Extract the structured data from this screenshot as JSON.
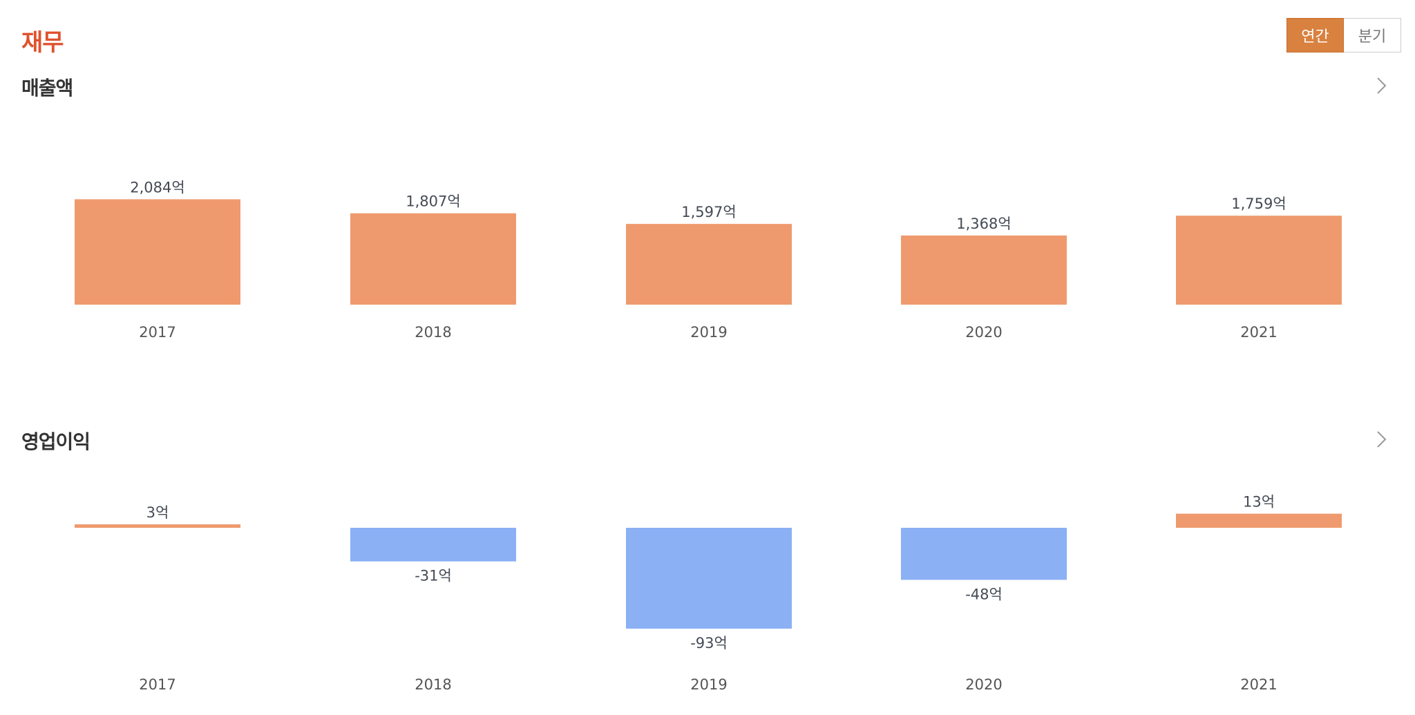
{
  "header": {
    "title": "재무",
    "toggle": {
      "options": [
        "연간",
        "분기"
      ],
      "selected": "연간"
    }
  },
  "colors": {
    "title_accent": "#e0522d",
    "toggle_active": "#d9813f",
    "positive_bar": "#ef9a6e",
    "negative_bar": "#8bb0f4"
  },
  "icons": {
    "section_link": "chevron-right-icon"
  },
  "chart_data": [
    {
      "type": "bar",
      "title": "매출액",
      "categories": [
        "2017",
        "2018",
        "2019",
        "2020",
        "2021"
      ],
      "values": [
        2084,
        1807,
        1597,
        1368,
        1759
      ],
      "value_labels": [
        "2,084억",
        "1,807억",
        "1,597억",
        "1,368억",
        "1,759억"
      ],
      "unit": "억",
      "ylim": [
        0,
        6000
      ],
      "grid": false,
      "legend": "none"
    },
    {
      "type": "bar",
      "title": "영업이익",
      "categories": [
        "2017",
        "2018",
        "2019",
        "2020",
        "2021"
      ],
      "values": [
        3,
        -31,
        -93,
        -48,
        13
      ],
      "value_labels": [
        "3억",
        "-31억",
        "-93억",
        "-48억",
        "13억"
      ],
      "unit": "억",
      "ylim": [
        -93,
        13
      ],
      "grid": false,
      "legend": "none"
    }
  ]
}
